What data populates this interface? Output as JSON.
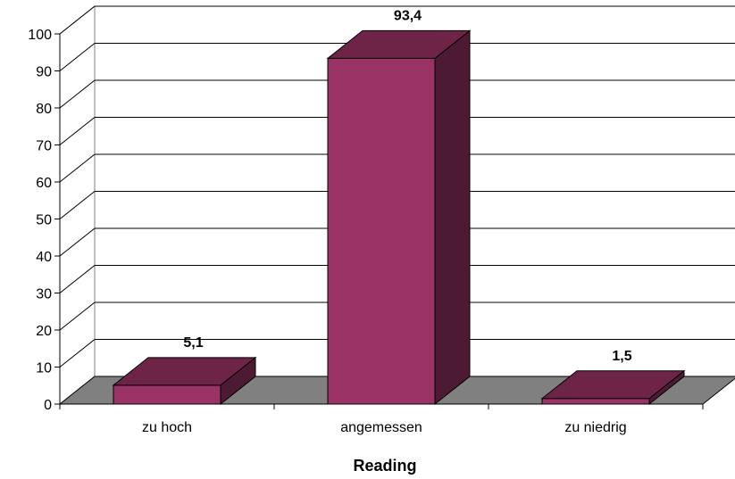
{
  "chart_data": {
    "type": "bar",
    "style": "3d-column",
    "categories": [
      "zu hoch",
      "angemessen",
      "zu niedrig"
    ],
    "values": [
      5.1,
      93.4,
      1.5
    ],
    "value_labels": [
      "5,1",
      "93,4",
      "1,5"
    ],
    "title": "",
    "xlabel": "Reading",
    "ylabel": "",
    "ylim": [
      0,
      100
    ],
    "yticks": [
      0,
      10,
      20,
      30,
      40,
      50,
      60,
      70,
      80,
      90,
      100
    ],
    "grid": true,
    "legend": "none",
    "colors": {
      "bar_front": "#993366",
      "bar_top": "#6e2447",
      "bar_side": "#4d1a33",
      "floor": "#808080",
      "gridline": "#000000",
      "background": "#ffffff"
    }
  }
}
